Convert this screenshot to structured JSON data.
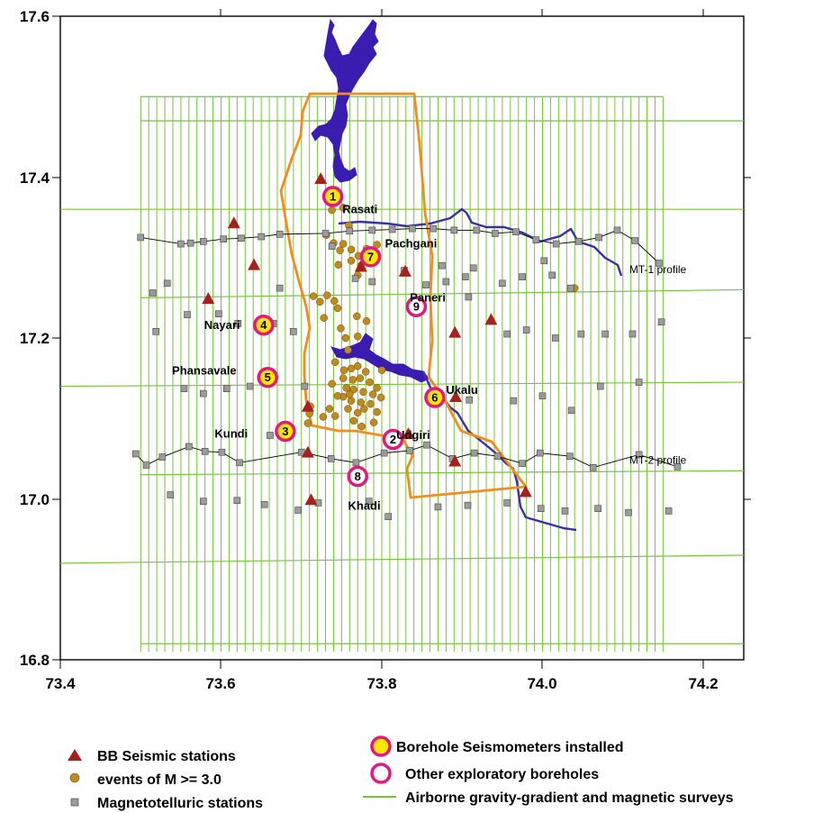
{
  "axes": {
    "x_ticks": [
      "73.4",
      "73.6",
      "73.8",
      "74.0",
      "74.2"
    ],
    "y_ticks": [
      "17.6",
      "17.4",
      "17.2",
      "17.0",
      "16.8"
    ]
  },
  "places": [
    {
      "name": "Rasati",
      "lon": 73.751,
      "lat": 17.361
    },
    {
      "name": "Pachgani",
      "lon": 73.804,
      "lat": 17.318
    },
    {
      "name": "Paneri",
      "lon": 73.835,
      "lat": 17.251
    },
    {
      "name": "Nayari",
      "lon": 73.579,
      "lat": 17.217
    },
    {
      "name": "Phansavale",
      "lon": 73.539,
      "lat": 17.16
    },
    {
      "name": "Ukalu",
      "lon": 73.88,
      "lat": 17.136
    },
    {
      "name": "Kundi",
      "lon": 73.592,
      "lat": 17.082
    },
    {
      "name": "Udgiri",
      "lon": 73.818,
      "lat": 17.08
    },
    {
      "name": "Khadi",
      "lon": 73.758,
      "lat": 16.992
    }
  ],
  "profiles": [
    {
      "label": "MT-1 profile",
      "lon": 74.108,
      "lat": 17.285
    },
    {
      "label": "MT-2 profile",
      "lon": 74.108,
      "lat": 17.048
    }
  ],
  "boreholes_installed": [
    {
      "id": "1",
      "lon": 73.739,
      "lat": 17.376
    },
    {
      "id": "7",
      "lon": 73.786,
      "lat": 17.301
    },
    {
      "id": "4",
      "lon": 73.653,
      "lat": 17.216
    },
    {
      "id": "5",
      "lon": 73.658,
      "lat": 17.151
    },
    {
      "id": "6",
      "lon": 73.866,
      "lat": 17.126
    },
    {
      "id": "3",
      "lon": 73.68,
      "lat": 17.084
    }
  ],
  "boreholes_other": [
    {
      "id": "9",
      "lon": 73.843,
      "lat": 17.239
    },
    {
      "id": "2",
      "lon": 73.814,
      "lat": 17.074
    },
    {
      "id": "8",
      "lon": 73.77,
      "lat": 17.028
    }
  ],
  "bb_stations": [
    [
      73.724,
      17.397
    ],
    [
      73.616,
      17.342
    ],
    [
      73.641,
      17.29
    ],
    [
      73.584,
      17.248
    ],
    [
      73.829,
      17.282
    ],
    [
      73.774,
      17.288
    ],
    [
      73.891,
      17.206
    ],
    [
      73.936,
      17.222
    ],
    [
      73.708,
      17.114
    ],
    [
      73.708,
      17.057
    ],
    [
      73.712,
      16.998
    ],
    [
      73.891,
      17.046
    ],
    [
      73.979,
      17.008
    ],
    [
      73.892,
      17.126
    ],
    [
      73.833,
      17.08
    ]
  ],
  "mt_stations": [
    [
      73.5,
      17.325
    ],
    [
      73.55,
      17.317
    ],
    [
      73.562,
      17.318
    ],
    [
      73.578,
      17.32
    ],
    [
      73.603,
      17.323
    ],
    [
      73.625,
      17.324
    ],
    [
      73.65,
      17.326
    ],
    [
      73.673,
      17.329
    ],
    [
      73.73,
      17.33
    ],
    [
      73.76,
      17.333
    ],
    [
      73.788,
      17.334
    ],
    [
      73.813,
      17.335
    ],
    [
      73.838,
      17.336
    ],
    [
      73.864,
      17.336
    ],
    [
      73.89,
      17.334
    ],
    [
      73.918,
      17.334
    ],
    [
      73.941,
      17.33
    ],
    [
      73.967,
      17.332
    ],
    [
      73.992,
      17.322
    ],
    [
      74.017,
      17.317
    ],
    [
      74.045,
      17.32
    ],
    [
      74.07,
      17.325
    ],
    [
      74.093,
      17.334
    ],
    [
      74.115,
      17.321
    ],
    [
      74.145,
      17.293
    ],
    [
      73.494,
      17.056
    ],
    [
      73.507,
      17.042
    ],
    [
      73.527,
      17.052
    ],
    [
      73.56,
      17.065
    ],
    [
      73.58,
      17.059
    ],
    [
      73.601,
      17.058
    ],
    [
      73.623,
      17.045
    ],
    [
      73.7,
      17.058
    ],
    [
      73.737,
      17.05
    ],
    [
      73.768,
      17.045
    ],
    [
      73.803,
      17.057
    ],
    [
      73.835,
      17.06
    ],
    [
      73.856,
      17.067
    ],
    [
      73.888,
      17.05
    ],
    [
      73.915,
      17.057
    ],
    [
      73.944,
      17.053
    ],
    [
      73.975,
      17.044
    ],
    [
      73.997,
      17.057
    ],
    [
      74.034,
      17.053
    ],
    [
      74.063,
      17.039
    ],
    [
      74.12,
      17.055
    ],
    [
      74.168,
      17.04
    ],
    [
      73.515,
      17.256
    ],
    [
      73.533,
      17.268
    ],
    [
      73.558,
      17.229
    ],
    [
      73.597,
      17.23
    ],
    [
      73.621,
      17.218
    ],
    [
      73.673,
      17.262
    ],
    [
      73.665,
      17.218
    ],
    [
      73.69,
      17.208
    ],
    [
      73.519,
      17.208
    ],
    [
      73.554,
      17.137
    ],
    [
      73.578,
      17.131
    ],
    [
      73.607,
      17.137
    ],
    [
      73.636,
      17.14
    ],
    [
      73.661,
      17.079
    ],
    [
      73.704,
      17.14
    ],
    [
      73.738,
      17.314
    ],
    [
      73.767,
      17.274
    ],
    [
      73.788,
      17.27
    ],
    [
      73.828,
      17.284
    ],
    [
      73.855,
      17.266
    ],
    [
      73.875,
      17.29
    ],
    [
      73.904,
      17.276
    ],
    [
      73.914,
      17.287
    ],
    [
      73.95,
      17.268
    ],
    [
      73.975,
      17.276
    ],
    [
      74.002,
      17.296
    ],
    [
      74.012,
      17.278
    ],
    [
      74.035,
      17.262
    ],
    [
      73.88,
      17.27
    ],
    [
      73.908,
      17.251
    ],
    [
      73.956,
      17.205
    ],
    [
      73.98,
      17.21
    ],
    [
      74.016,
      17.2
    ],
    [
      74.048,
      17.205
    ],
    [
      74.078,
      17.205
    ],
    [
      74.112,
      17.205
    ],
    [
      74.148,
      17.22
    ],
    [
      73.964,
      17.122
    ],
    [
      74.0,
      17.128
    ],
    [
      74.036,
      17.11
    ],
    [
      74.072,
      17.14
    ],
    [
      74.12,
      17.145
    ],
    [
      73.537,
      17.005
    ],
    [
      73.578,
      16.997
    ],
    [
      73.62,
      16.998
    ],
    [
      73.654,
      16.993
    ],
    [
      73.696,
      16.986
    ],
    [
      73.721,
      16.995
    ],
    [
      73.784,
      16.997
    ],
    [
      73.808,
      16.978
    ],
    [
      73.87,
      16.99
    ],
    [
      73.907,
      16.992
    ],
    [
      73.956,
      16.995
    ],
    [
      73.998,
      16.988
    ],
    [
      74.028,
      16.985
    ],
    [
      74.069,
      16.988
    ],
    [
      74.107,
      16.983
    ],
    [
      74.157,
      16.985
    ],
    [
      73.909,
      17.123
    ]
  ],
  "events": [
    [
      73.738,
      17.359
    ],
    [
      73.752,
      17.362
    ],
    [
      73.759,
      17.34
    ],
    [
      73.731,
      17.328
    ],
    [
      73.74,
      17.318
    ],
    [
      73.748,
      17.309
    ],
    [
      73.752,
      17.317
    ],
    [
      73.762,
      17.31
    ],
    [
      73.771,
      17.302
    ],
    [
      73.781,
      17.311
    ],
    [
      73.746,
      17.291
    ],
    [
      73.762,
      17.296
    ],
    [
      73.774,
      17.29
    ],
    [
      73.794,
      17.316
    ],
    [
      73.77,
      17.278
    ],
    [
      73.715,
      17.252
    ],
    [
      73.723,
      17.245
    ],
    [
      73.732,
      17.253
    ],
    [
      73.741,
      17.246
    ],
    [
      73.745,
      17.237
    ],
    [
      73.728,
      17.225
    ],
    [
      73.749,
      17.212
    ],
    [
      73.755,
      17.2
    ],
    [
      73.758,
      17.185
    ],
    [
      73.769,
      17.227
    ],
    [
      73.781,
      17.221
    ],
    [
      73.77,
      17.202
    ],
    [
      73.742,
      17.17
    ],
    [
      73.753,
      17.16
    ],
    [
      73.762,
      17.162
    ],
    [
      73.77,
      17.165
    ],
    [
      73.78,
      17.158
    ],
    [
      73.752,
      17.15
    ],
    [
      73.764,
      17.148
    ],
    [
      73.773,
      17.15
    ],
    [
      73.785,
      17.145
    ],
    [
      73.794,
      17.138
    ],
    [
      73.756,
      17.138
    ],
    [
      73.765,
      17.136
    ],
    [
      73.777,
      17.133
    ],
    [
      73.789,
      17.13
    ],
    [
      73.799,
      17.126
    ],
    [
      73.752,
      17.127
    ],
    [
      73.762,
      17.122
    ],
    [
      73.774,
      17.12
    ],
    [
      73.786,
      17.118
    ],
    [
      73.758,
      17.112
    ],
    [
      73.77,
      17.107
    ],
    [
      73.778,
      17.112
    ],
    [
      73.794,
      17.108
    ],
    [
      73.742,
      17.103
    ],
    [
      73.735,
      17.112
    ],
    [
      73.727,
      17.102
    ],
    [
      73.71,
      17.106
    ],
    [
      73.708,
      17.094
    ],
    [
      73.711,
      17.115
    ],
    [
      73.79,
      17.095
    ],
    [
      73.775,
      17.09
    ],
    [
      73.765,
      17.097
    ],
    [
      73.8,
      17.16
    ],
    [
      73.738,
      17.143
    ],
    [
      73.745,
      17.128
    ],
    [
      73.76,
      17.13
    ],
    [
      73.871,
      17.121
    ],
    [
      74.04,
      17.262
    ]
  ],
  "legend": {
    "bb": "BB Seismic stations",
    "events": "events of M >= 3.0",
    "mt": "Magnetotelluric stations",
    "installed": "Borehole Seismometers installed",
    "other": "Other exploratory boreholes",
    "airborne": "Airborne gravity-gradient and magnetic surveys"
  },
  "colors": {
    "river": "#3c2fa6",
    "reservoir": "#3a1db0",
    "boundary": "#f28c1b",
    "grid_lines": "#78c23c",
    "bb_triangle": "#a6201c",
    "event": "#c08a1c",
    "mt_square": "#9b9b9b",
    "borehole_ring": "#e3177f",
    "borehole_fill": "#ffe600"
  }
}
